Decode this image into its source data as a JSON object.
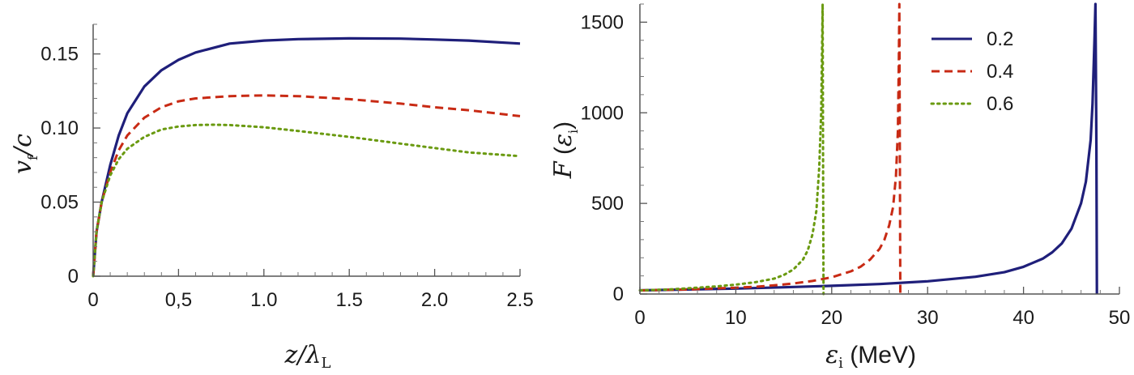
{
  "chart_data": [
    {
      "type": "line",
      "ylabel": "v_f/c",
      "xlabel": "z/λ_L",
      "xlim": [
        0,
        2.5
      ],
      "ylim": [
        0,
        0.17
      ],
      "xticks": [
        0,
        0.5,
        1.0,
        1.5,
        2.0,
        2.5
      ],
      "xtick_labels": [
        "0",
        "0,5",
        "1.0",
        "1.5",
        "2.0",
        "2.5"
      ],
      "yticks": [
        0,
        0.05,
        0.1,
        0.15
      ],
      "ytick_labels": [
        "0",
        "0.05",
        "0.10",
        "0.15"
      ],
      "grid": false,
      "series": [
        {
          "color": "#1f1f7a",
          "style": "solid",
          "x": [
            0,
            0.02,
            0.05,
            0.1,
            0.15,
            0.2,
            0.3,
            0.4,
            0.5,
            0.6,
            0.8,
            1.0,
            1.2,
            1.5,
            1.8,
            2.0,
            2.2,
            2.5
          ],
          "y": [
            0,
            0.03,
            0.05,
            0.075,
            0.095,
            0.11,
            0.128,
            0.139,
            0.146,
            0.151,
            0.157,
            0.159,
            0.16,
            0.1605,
            0.1603,
            0.1597,
            0.159,
            0.157
          ]
        },
        {
          "color": "#c82a14",
          "style": "dashed",
          "x": [
            0,
            0.02,
            0.05,
            0.1,
            0.15,
            0.2,
            0.3,
            0.4,
            0.5,
            0.6,
            0.8,
            1.0,
            1.2,
            1.5,
            1.8,
            2.0,
            2.2,
            2.5
          ],
          "y": [
            0,
            0.03,
            0.05,
            0.07,
            0.085,
            0.095,
            0.107,
            0.114,
            0.118,
            0.12,
            0.1215,
            0.122,
            0.1215,
            0.1195,
            0.1165,
            0.114,
            0.112,
            0.108
          ]
        },
        {
          "color": "#6a9a10",
          "style": "dotted",
          "x": [
            0,
            0.02,
            0.05,
            0.1,
            0.15,
            0.2,
            0.3,
            0.4,
            0.5,
            0.6,
            0.7,
            0.8,
            1.0,
            1.2,
            1.5,
            1.8,
            2.0,
            2.2,
            2.5
          ],
          "y": [
            0,
            0.03,
            0.05,
            0.068,
            0.079,
            0.086,
            0.094,
            0.099,
            0.101,
            0.102,
            0.1022,
            0.102,
            0.1005,
            0.098,
            0.094,
            0.0895,
            0.0865,
            0.0835,
            0.081
          ]
        }
      ]
    },
    {
      "type": "line",
      "ylabel": "F (ε_i)",
      "xlabel": "ε_i (MeV)",
      "xlim": [
        0,
        50
      ],
      "ylim": [
        0,
        1600
      ],
      "xticks": [
        0,
        10,
        20,
        30,
        40,
        50
      ],
      "xtick_labels": [
        "0",
        "10",
        "20",
        "30",
        "40",
        "50"
      ],
      "yticks": [
        0,
        500,
        1000,
        1500
      ],
      "ytick_labels": [
        "0",
        "500",
        "1000",
        "1500"
      ],
      "grid": false,
      "legend": {
        "position": "top-right",
        "entries": [
          "0.2",
          "0.4",
          "0.6"
        ]
      },
      "series": [
        {
          "name": "0.2",
          "color": "#1f1f7a",
          "style": "solid",
          "x": [
            0,
            5,
            10,
            15,
            20,
            25,
            30,
            35,
            38,
            40,
            42,
            43,
            44,
            45,
            46,
            46.5,
            47,
            47.2,
            47.4,
            47.5,
            47.6,
            47.65
          ],
          "y": [
            20,
            25,
            30,
            37,
            45,
            55,
            70,
            95,
            120,
            150,
            195,
            230,
            280,
            360,
            500,
            620,
            850,
            1050,
            1400,
            1600,
            800,
            0
          ]
        },
        {
          "name": "0.4",
          "color": "#c82a14",
          "style": "dashed",
          "x": [
            0,
            5,
            10,
            12,
            14,
            16,
            18,
            20,
            22,
            23,
            24,
            25,
            25.5,
            26,
            26.4,
            26.7,
            26.9,
            27.0,
            27.05,
            27.1,
            27.15
          ],
          "y": [
            20,
            25,
            35,
            40,
            48,
            58,
            72,
            92,
            125,
            150,
            190,
            250,
            300,
            380,
            480,
            650,
            900,
            1300,
            1600,
            800,
            0
          ]
        },
        {
          "name": "0.6",
          "color": "#6a9a10",
          "style": "dotted",
          "x": [
            0,
            3,
            6,
            8,
            10,
            12,
            14,
            15,
            16,
            17,
            17.5,
            18,
            18.4,
            18.7,
            18.9,
            19.0,
            19.05,
            19.1,
            19.15
          ],
          "y": [
            20,
            25,
            35,
            42,
            52,
            65,
            85,
            105,
            135,
            190,
            240,
            330,
            460,
            700,
            1000,
            1400,
            1600,
            800,
            0
          ]
        }
      ]
    }
  ]
}
